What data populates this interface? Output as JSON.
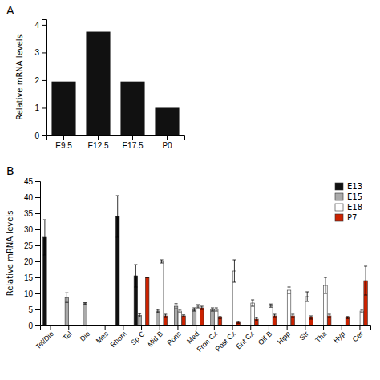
{
  "chart_data": [
    {
      "type": "bar",
      "title": "A",
      "categories": [
        "E9.5",
        "E12.5",
        "E17.5",
        "P0"
      ],
      "values": [
        1.95,
        3.75,
        1.95,
        1.0
      ],
      "color": "#111111",
      "ylabel": "Relative mRNA levels",
      "ylim": [
        0,
        4.2
      ],
      "yticks": [
        0,
        1,
        2,
        3,
        4
      ]
    },
    {
      "type": "bar",
      "title": "B",
      "categories": [
        "Tel/Die",
        "Tel",
        "Die",
        "Mes",
        "Rhom",
        "Sp C",
        "Mid B",
        "Pons",
        "Med",
        "Fron Cx",
        "Post Cx",
        "Ent Cx",
        "Olf B",
        "Hipp",
        "Str",
        "Tha",
        "Hyp",
        "Cer"
      ],
      "series": [
        {
          "name": "E13",
          "color": "#111111",
          "values": [
            27.5,
            0,
            0,
            0,
            34.0,
            15.5,
            0,
            0,
            0,
            0,
            0,
            0,
            0,
            0,
            0,
            0,
            0,
            0
          ],
          "errors": [
            5.5,
            0,
            0,
            0,
            6.5,
            3.5,
            0,
            0,
            0,
            0,
            0,
            0,
            0,
            0,
            0,
            0,
            0,
            0
          ]
        },
        {
          "name": "E15",
          "color": "#aaaaaa",
          "values": [
            0,
            8.7,
            6.8,
            0,
            0,
            3.2,
            4.5,
            6.0,
            5.0,
            5.0,
            0,
            0,
            0,
            0,
            0,
            0,
            0,
            0
          ],
          "errors": [
            0,
            1.5,
            0.3,
            0,
            0,
            0.5,
            0.5,
            0.8,
            0.5,
            0.5,
            0,
            0,
            0,
            0,
            0,
            0,
            0,
            0
          ]
        },
        {
          "name": "E18",
          "color": "#ffffff",
          "values": [
            0,
            0,
            0,
            0,
            0,
            0,
            20.0,
            4.5,
            6.0,
            5.0,
            17.0,
            7.0,
            6.2,
            11.0,
            9.0,
            12.5,
            0,
            4.5
          ],
          "errors": [
            0,
            0,
            0,
            0,
            0,
            0,
            0.5,
            0.5,
            0.5,
            0.5,
            3.5,
            1.0,
            0.5,
            1.0,
            1.5,
            2.5,
            0,
            0.5
          ]
        },
        {
          "name": "P7",
          "color": "#cc2200",
          "values": [
            0,
            0,
            0,
            0,
            0,
            15.0,
            3.0,
            3.0,
            5.5,
            2.5,
            1.0,
            2.0,
            3.0,
            3.0,
            2.5,
            3.0,
            2.5,
            14.0
          ],
          "errors": [
            0,
            0,
            0,
            0,
            0,
            0,
            0.5,
            0.3,
            0.5,
            0.3,
            0.3,
            0.5,
            0.5,
            0.5,
            0.5,
            0.5,
            0.3,
            4.5
          ]
        }
      ],
      "ylabel": "Relative mRNA levels",
      "ylim": [
        0,
        45
      ],
      "yticks": [
        0,
        5,
        10,
        15,
        20,
        25,
        30,
        35,
        40,
        45
      ],
      "legend": "upper right"
    }
  ]
}
